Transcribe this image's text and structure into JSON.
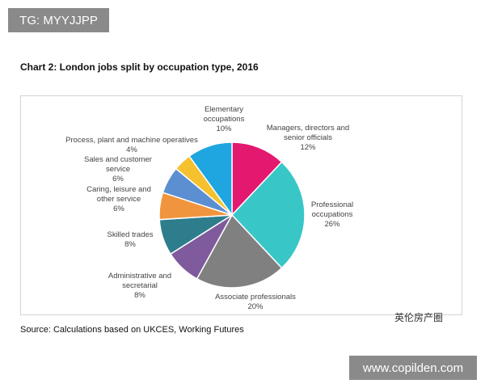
{
  "chart_data": {
    "type": "pie",
    "title": "Chart 2: London jobs split by occupation type, 2016",
    "categories": [
      "Managers, directors and senior officials",
      "Professional occupations",
      "Associate professionals",
      "Administrative and secretarial",
      "Skilled trades",
      "Caring, leisure and other service",
      "Sales and customer service",
      "Process, plant and machine operatives",
      "Elementary occupations"
    ],
    "values": [
      12,
      26,
      20,
      8,
      8,
      6,
      6,
      4,
      10
    ],
    "value_labels": [
      "12%",
      "26%",
      "20%",
      "8%",
      "8%",
      "6%",
      "6%",
      "4%",
      "10%"
    ],
    "colors": [
      "#e3186f",
      "#38c7c6",
      "#808080",
      "#7f5a9c",
      "#2e7d8c",
      "#f0953d",
      "#5c8fd1",
      "#f5c12e",
      "#1fa6e0"
    ],
    "source": "Source: Calculations based on UKCES, Working Futures"
  },
  "watermarks": {
    "top_left": "TG: MYYJJPP",
    "bottom_right": "www.copilden.com",
    "account": "英伦房产圈"
  }
}
